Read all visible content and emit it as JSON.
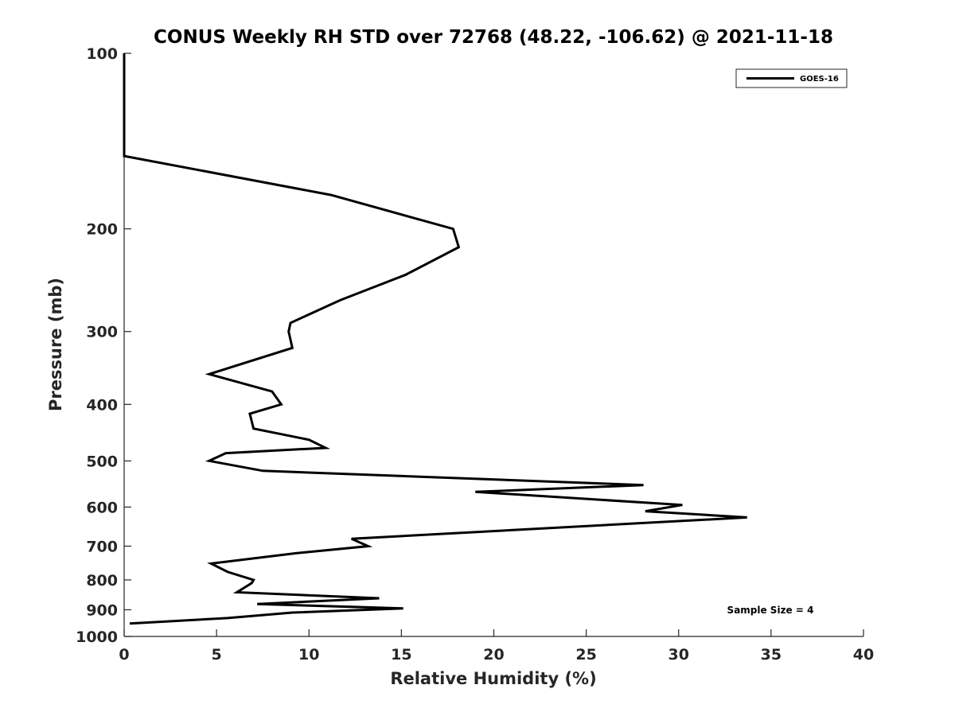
{
  "chart_data": {
    "type": "line",
    "title": "CONUS Weekly RH STD over 72768 (48.22, -106.62) @ 2021-11-18",
    "xlabel": "Relative Humidity (%)",
    "ylabel": "Pressure (mb)",
    "xlim": [
      0,
      40
    ],
    "ylim": [
      100,
      1000
    ],
    "yscale": "log",
    "y_reversed": true,
    "x_ticks": [
      0,
      5,
      10,
      15,
      20,
      25,
      30,
      35,
      40
    ],
    "y_ticks": [
      100,
      200,
      300,
      400,
      500,
      600,
      700,
      800,
      900,
      1000
    ],
    "grid": false,
    "legend_position": "top-right",
    "annotation": "Sample Size = 4",
    "series": [
      {
        "name": "GOES-16",
        "color": "#000000",
        "x": [
          0,
          0,
          11.2,
          17.8,
          18.1,
          15.2,
          11.7,
          9.0,
          8.9,
          9.1,
          4.6,
          8.0,
          8.5,
          6.8,
          7.0,
          10.0,
          10.9,
          5.5,
          4.6,
          7.5,
          28.1,
          19.0,
          30.2,
          28.2,
          33.7,
          12.3,
          13.2,
          9.3,
          4.7,
          5.6,
          7.0,
          6.9,
          6.1,
          13.8,
          7.2,
          15.1,
          9.1,
          5.6,
          0.3
        ],
        "y": [
          100,
          150,
          175,
          200,
          215,
          240,
          265,
          290,
          300,
          320,
          355,
          380,
          400,
          415,
          440,
          460,
          475,
          485,
          500,
          520,
          550,
          565,
          595,
          610,
          625,
          680,
          700,
          720,
          750,
          775,
          800,
          810,
          840,
          860,
          880,
          895,
          910,
          930,
          950
        ]
      }
    ]
  }
}
